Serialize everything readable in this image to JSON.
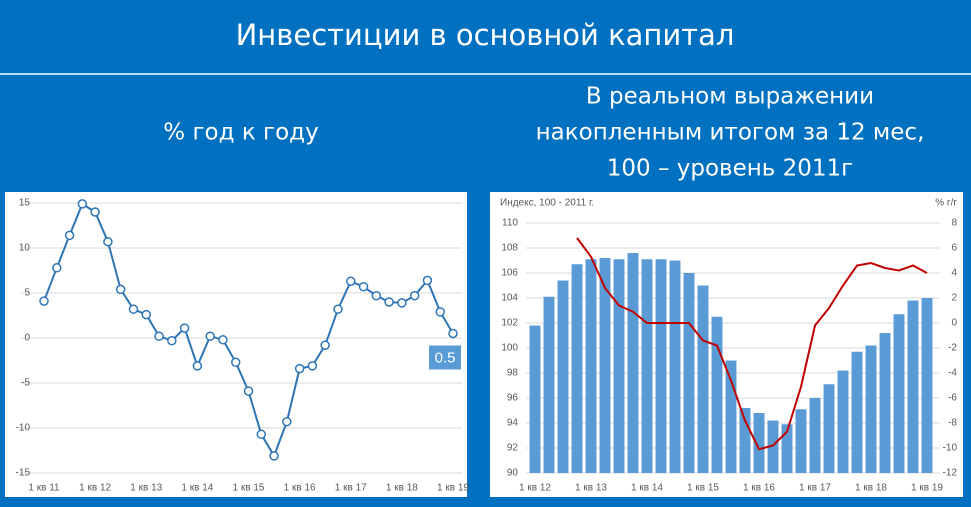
{
  "slide": {
    "title": "Инвестиции в основной капитал",
    "subtitles": [
      [
        "% год к году"
      ],
      [
        "В реальном выражении",
        "накопленным итогом за 12 мес,",
        "100 – уровень 2011г"
      ]
    ]
  },
  "chart_data": [
    {
      "type": "line",
      "color": "#2e75b6",
      "grid": true,
      "categories": [
        "1 кв 11",
        null,
        null,
        null,
        "1 кв 12",
        null,
        null,
        null,
        "1 кв 13",
        null,
        null,
        null,
        "1 кв 14",
        null,
        null,
        null,
        "1 кв 15",
        null,
        null,
        null,
        "1 кв 16",
        null,
        null,
        null,
        "1 кв 17",
        null,
        null,
        null,
        "1 кв 18",
        null,
        null,
        null,
        "1 кв 19"
      ],
      "values": [
        4.1,
        7.8,
        11.4,
        14.9,
        14.0,
        10.7,
        5.4,
        3.2,
        2.6,
        0.2,
        -0.3,
        1.1,
        -3.1,
        0.2,
        -0.2,
        -2.7,
        -5.9,
        -10.7,
        -13.1,
        -9.3,
        -3.4,
        -3.1,
        -0.8,
        3.2,
        6.3,
        5.7,
        4.7,
        4.0,
        3.9,
        4.7,
        6.4,
        2.9,
        0.5
      ],
      "ylim": [
        -15,
        15
      ],
      "yticks": [
        -15,
        -10,
        -5,
        0,
        5,
        10,
        15
      ]
    },
    {
      "type": "bar",
      "grid": true,
      "y_label": "Индекс, 100 - 2011 г.",
      "y2_label": "% г/г",
      "categories": [
        "1 кв 12",
        null,
        null,
        null,
        "1 кв 13",
        null,
        null,
        null,
        "1 кв 14",
        null,
        null,
        null,
        "1 кв 15",
        null,
        null,
        null,
        "1 кв 16",
        null,
        null,
        null,
        "1 кв 17",
        null,
        null,
        null,
        "1 кв 18",
        null,
        null,
        null,
        "1 кв 19"
      ],
      "series": [
        {
          "type": "bar",
          "color": "#5b9bd5",
          "values": [
            101.8,
            104.1,
            105.4,
            106.7,
            107.1,
            107.2,
            107.1,
            107.6,
            107.1,
            107.1,
            107.0,
            106.0,
            105.0,
            102.5,
            99.0,
            95.2,
            94.8,
            94.2,
            93.9,
            95.1,
            96.0,
            97.1,
            98.2,
            99.7,
            100.2,
            101.2,
            102.7,
            103.8,
            104.0
          ]
        },
        {
          "type": "line",
          "axis": "y2",
          "color": "#c00000",
          "values": [
            null,
            null,
            null,
            6.8,
            5.3,
            2.8,
            1.4,
            0.9,
            0.0,
            0.0,
            0.0,
            0.0,
            -1.4,
            -1.8,
            -4.6,
            -7.8,
            -10.1,
            -9.8,
            -8.7,
            -5.1,
            -0.2,
            1.2,
            3.0,
            4.6,
            4.8,
            4.4,
            4.2,
            4.6,
            4.0
          ]
        }
      ],
      "ylim": [
        90,
        110
      ],
      "yticks": [
        90,
        92,
        94,
        96,
        98,
        100,
        102,
        104,
        106,
        108,
        110
      ],
      "y2lim": [
        -12,
        8
      ],
      "y2ticks": [
        -12,
        -10,
        -8,
        -6,
        -4,
        -2,
        0,
        2,
        4,
        6,
        8
      ]
    }
  ]
}
